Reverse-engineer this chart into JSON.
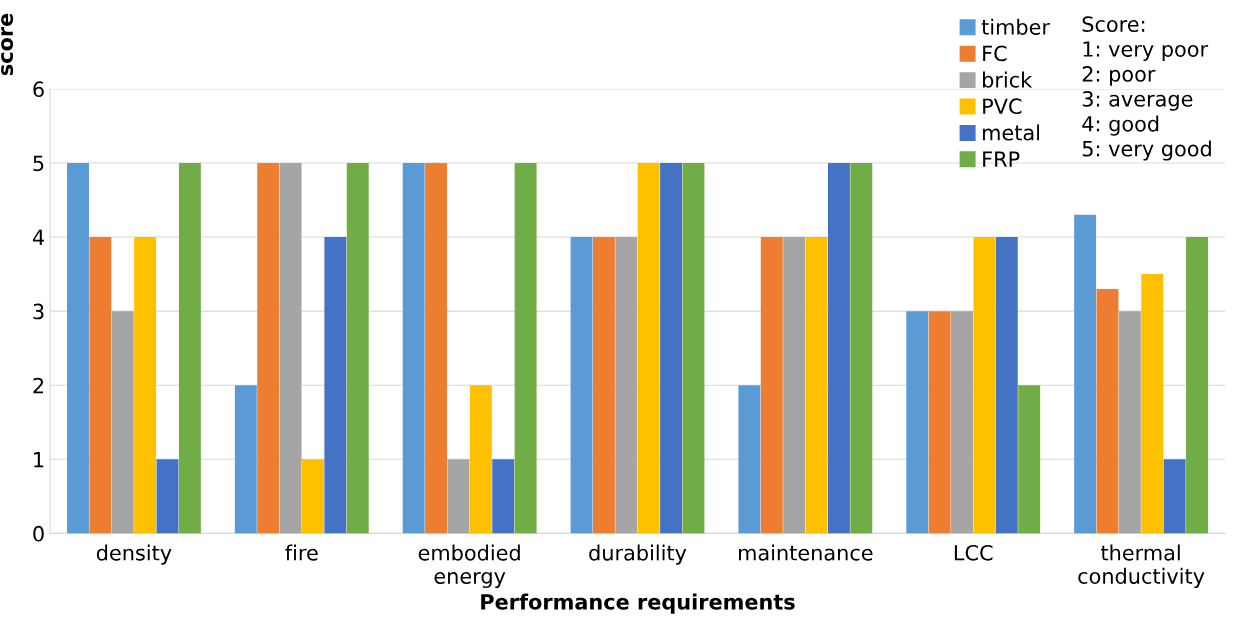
{
  "chart_data": {
    "type": "bar",
    "xlabel": "Performance requirements",
    "ylabel": "score",
    "categories": [
      "density",
      "fire",
      "embodied energy",
      "durability",
      "maintenance",
      "LCC",
      "thermal conductivity"
    ],
    "series": [
      {
        "name": "timber",
        "color": "#5b9bd5",
        "values": [
          5,
          2,
          5,
          4,
          2,
          3,
          4.3
        ]
      },
      {
        "name": "FC",
        "color": "#ed7d31",
        "values": [
          4,
          5,
          5,
          4,
          4,
          3,
          3.3
        ]
      },
      {
        "name": "brick",
        "color": "#a5a5a5",
        "values": [
          3,
          5,
          1,
          4,
          4,
          3,
          3
        ]
      },
      {
        "name": "PVC",
        "color": "#ffc000",
        "values": [
          4,
          1,
          2,
          5,
          4,
          4,
          3.5
        ]
      },
      {
        "name": "metal",
        "color": "#4472c4",
        "values": [
          1,
          4,
          1,
          5,
          5,
          4,
          1
        ]
      },
      {
        "name": "FRP",
        "color": "#70ad47",
        "values": [
          5,
          5,
          5,
          5,
          5,
          2,
          4
        ]
      }
    ],
    "ylim": [
      0,
      6
    ],
    "yticks": [
      0,
      1,
      2,
      3,
      4,
      5,
      6
    ],
    "grid": "y",
    "legend": "top right",
    "annotations": [
      "Score:\n1: very poor\n2: poor\n3: average\n4: good\n5: very good"
    ]
  }
}
